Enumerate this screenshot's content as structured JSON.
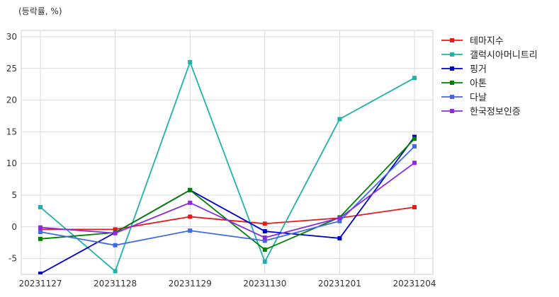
{
  "chart_data": {
    "type": "line",
    "unit_label": "(등락률, %)",
    "title": "",
    "xlabel": "",
    "ylabel": "",
    "categories": [
      "20231127",
      "20231128",
      "20231129",
      "20231130",
      "20231201",
      "20231204"
    ],
    "ylim": [
      -7.5,
      31
    ],
    "yticks": [
      -5,
      0,
      5,
      10,
      15,
      20,
      25,
      30
    ],
    "grid": true,
    "legend_position": "right",
    "series": [
      {
        "name": "테마지수",
        "color": "#e41a1c",
        "values": [
          -0.4,
          -0.4,
          1.6,
          0.5,
          1.4,
          3.1
        ]
      },
      {
        "name": "갤럭시아머니트리",
        "color": "#20b2aa",
        "values": [
          3.1,
          -7.0,
          26.0,
          -5.5,
          17.0,
          23.5
        ]
      },
      {
        "name": "핑거",
        "color": "#0000cd",
        "values": [
          -7.4,
          -0.9,
          5.8,
          -0.7,
          -1.8,
          14.2
        ]
      },
      {
        "name": "아톤",
        "color": "#008000",
        "values": [
          -1.9,
          -0.9,
          5.8,
          -3.6,
          1.5,
          13.9
        ]
      },
      {
        "name": "다날",
        "color": "#4169e1",
        "values": [
          -0.8,
          -2.9,
          -0.6,
          -2.2,
          0.9,
          12.7
        ]
      },
      {
        "name": "한국정보인증",
        "color": "#8a2be2",
        "values": [
          -0.1,
          -1.0,
          3.8,
          -1.7,
          1.4,
          10.1
        ]
      }
    ]
  }
}
